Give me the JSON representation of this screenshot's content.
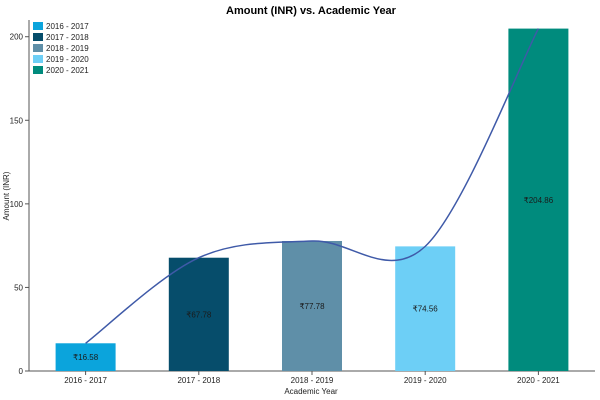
{
  "chart_data": {
    "type": "bar",
    "title": "Amount (INR) vs. Academic Year",
    "xlabel": "Academic Year",
    "ylabel": "Amount (INR)",
    "ylim": [
      0,
      210
    ],
    "yticks": [
      0,
      50,
      100,
      150,
      200
    ],
    "categories": [
      "2016 - 2017",
      "2017 - 2018",
      "2018 - 2019",
      "2019 - 2020",
      "2020 - 2021"
    ],
    "values": [
      16.58,
      67.78,
      77.78,
      74.56,
      204.86
    ],
    "data_labels": [
      "₹16.58",
      "₹67.78",
      "₹77.78",
      "₹74.56",
      "₹204.86"
    ],
    "colors": [
      "#0ba4dc",
      "#064d6b",
      "#5f8fa8",
      "#6dcff6",
      "#008b7d"
    ],
    "trend_line_color": "#3f5aa8",
    "legend": {
      "placement": "top-left",
      "entries": [
        "2016 - 2017",
        "2017 - 2018",
        "2018 - 2019",
        "2019 - 2020",
        "2020 - 2021"
      ]
    },
    "grid": false
  }
}
